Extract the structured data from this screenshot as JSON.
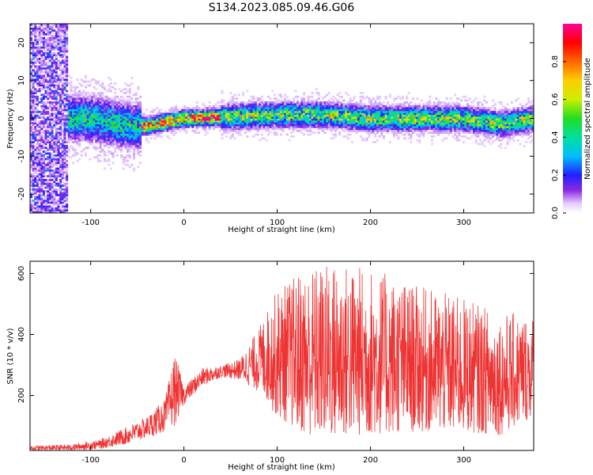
{
  "title": "S134.2023.085.09.46.G06",
  "chart_data": [
    {
      "type": "heatmap",
      "xlabel": "Height of straight line (km)",
      "ylabel": "Frequency (Hz)",
      "xlim": [
        -165,
        375
      ],
      "ylim": [
        -25,
        25
      ],
      "xticks": [
        -100,
        0,
        100,
        200,
        300
      ],
      "yticks": [
        -20,
        -10,
        0,
        10,
        20
      ],
      "colorbar": {
        "label": "Normalized spectral amplitude",
        "range": [
          0.0,
          1.0
        ],
        "ticks": [
          0.0,
          0.2,
          0.4,
          0.6,
          0.8
        ]
      },
      "ridge": {
        "x": [
          -100,
          -60,
          -40,
          0,
          50,
          100,
          150,
          200,
          250,
          300,
          340,
          375
        ],
        "y": [
          0,
          -2,
          -2,
          0,
          0.5,
          1,
          1,
          0,
          0,
          0,
          -1.5,
          0
        ]
      }
    },
    {
      "type": "line",
      "xlabel": "Height of straight line (km)",
      "ylabel": "SNR (10 * v/v)",
      "xlim": [
        -165,
        375
      ],
      "ylim": [
        20,
        640
      ],
      "xticks": [
        -100,
        0,
        100,
        200,
        300
      ],
      "yticks": [
        200,
        400,
        600
      ],
      "color": "#ee3333",
      "envelope": {
        "x": [
          -165,
          -120,
          -90,
          -60,
          -40,
          -20,
          -10,
          0,
          20,
          40,
          60,
          80,
          100,
          130,
          160,
          200,
          250,
          300,
          340,
          375
        ],
        "low": [
          20,
          20,
          25,
          40,
          60,
          80,
          100,
          170,
          230,
          260,
          250,
          210,
          130,
          70,
          60,
          70,
          80,
          80,
          70,
          130
        ],
        "high": [
          35,
          40,
          55,
          100,
          130,
          190,
          340,
          230,
          290,
          300,
          320,
          420,
          550,
          620,
          640,
          620,
          560,
          520,
          470,
          470
        ]
      }
    }
  ]
}
